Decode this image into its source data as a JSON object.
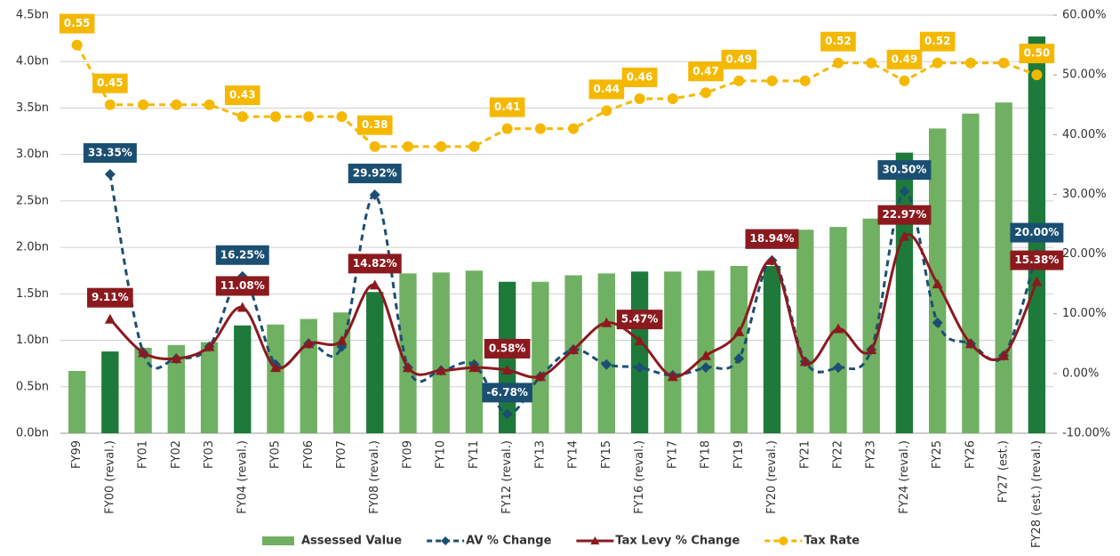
{
  "chart_data": {
    "type": "combo",
    "categories": [
      "FY99",
      "FY00 (reval.)",
      "FY01",
      "FY02",
      "FY03",
      "FY04 (reval.)",
      "FY05",
      "FY06",
      "FY07",
      "FY08 (reval.)",
      "FY09",
      "FY10",
      "FY11",
      "FY12 (reval.)",
      "FY13",
      "FY14",
      "FY15",
      "FY16 (reval.)",
      "FY17",
      "FY18",
      "FY19",
      "FY20 (reval.)",
      "FY21",
      "FY22",
      "FY23",
      "FY24 (reval.)",
      "FY25",
      "FY26",
      "FY27 (est.)",
      "FY28 (est.) (reval.)"
    ],
    "ylim": [
      0,
      4.5
    ],
    "yticks": [
      {
        "value": 0,
        "label": "0.0bn"
      },
      {
        "value": 0.5,
        "label": "0.5bn"
      },
      {
        "value": 1,
        "label": "1.0bn"
      },
      {
        "value": 1.5,
        "label": "1.5bn"
      },
      {
        "value": 2,
        "label": "2.0bn"
      },
      {
        "value": 2.5,
        "label": "2.5bn"
      },
      {
        "value": 3,
        "label": "3.0bn"
      },
      {
        "value": 3.5,
        "label": "3.5bn"
      },
      {
        "value": 4,
        "label": "4.0bn"
      },
      {
        "value": 4.5,
        "label": "4.5bn"
      }
    ],
    "y2lim": [
      -10,
      60
    ],
    "y2ticks": [
      {
        "value": -10,
        "label": "-10.00%"
      },
      {
        "value": 0,
        "label": "0.00%"
      },
      {
        "value": 10,
        "label": "10.00%"
      },
      {
        "value": 20,
        "label": "20.00%"
      },
      {
        "value": 30,
        "label": "30.00%"
      },
      {
        "value": 40,
        "label": "40.00%"
      },
      {
        "value": 50,
        "label": "50.00%"
      },
      {
        "value": 60,
        "label": "60.00%"
      }
    ],
    "y3lim": [
      -0.1,
      0.6
    ],
    "grid": true,
    "legend": "bottom",
    "series": [
      {
        "name": "Assessed Value",
        "type": "bar",
        "color": "#70b062",
        "colors": [
          "#70b062",
          "#1e7a3a",
          "#70b062",
          "#70b062",
          "#70b062",
          "#1e7a3a",
          "#70b062",
          "#70b062",
          "#70b062",
          "#1e7a3a",
          "#70b062",
          "#70b062",
          "#70b062",
          "#1e7a3a",
          "#70b062",
          "#70b062",
          "#70b062",
          "#1e7a3a",
          "#70b062",
          "#70b062",
          "#70b062",
          "#1e7a3a",
          "#70b062",
          "#70b062",
          "#70b062",
          "#1e7a3a",
          "#70b062",
          "#70b062",
          "#70b062",
          "#1e7a3a"
        ],
        "values": [
          0.67,
          0.88,
          0.92,
          0.95,
          0.98,
          1.16,
          1.17,
          1.23,
          1.3,
          1.52,
          1.72,
          1.73,
          1.75,
          1.63,
          1.63,
          1.7,
          1.72,
          1.74,
          1.74,
          1.75,
          1.8,
          1.8,
          2.19,
          2.22,
          2.31,
          3.02,
          3.28,
          3.44,
          3.56,
          4.27
        ]
      },
      {
        "name": "AV % Change",
        "type": "line",
        "axis": "y2",
        "color": "#1b4f72",
        "dashed": true,
        "marker": "diamond",
        "values": [
          null,
          33.35,
          3.5,
          2.5,
          4.5,
          16.25,
          1.5,
          5,
          4.5,
          29.92,
          1,
          0.5,
          1.5,
          -6.78,
          -0.5,
          4,
          1.5,
          1,
          -0.3,
          1,
          2.5,
          18.94,
          2,
          1,
          4,
          30.5,
          8.5,
          5,
          3,
          20
        ],
        "value_labels": [
          null,
          "33.35%",
          null,
          null,
          null,
          "16.25%",
          null,
          null,
          null,
          "29.92%",
          null,
          null,
          null,
          "-6.78%",
          null,
          null,
          null,
          null,
          null,
          null,
          null,
          "18.94%",
          null,
          null,
          null,
          "30.50%",
          null,
          null,
          null,
          "20.00%"
        ]
      },
      {
        "name": "Tax Levy % Change",
        "type": "line",
        "axis": "y2",
        "color": "#8b1a1f",
        "dashed": false,
        "marker": "triangle",
        "values": [
          null,
          9.11,
          3.5,
          2.5,
          4.5,
          11.08,
          1,
          5,
          5.5,
          14.82,
          1,
          0.5,
          1,
          0.58,
          -0.5,
          4,
          8.5,
          5.47,
          -0.5,
          3,
          7,
          18.94,
          2,
          7.5,
          4,
          22.97,
          15,
          5,
          3,
          15.38
        ],
        "value_labels": [
          null,
          "9.11%",
          null,
          null,
          null,
          "11.08%",
          null,
          null,
          null,
          "14.82%",
          null,
          null,
          null,
          "0.58%",
          null,
          null,
          null,
          "5.47%",
          null,
          null,
          null,
          "18.94%",
          null,
          null,
          null,
          "22.97%",
          null,
          null,
          null,
          "15.38%"
        ]
      },
      {
        "name": "Tax Rate",
        "type": "line",
        "axis": "y3",
        "color": "#f5b800",
        "dashed": true,
        "marker": "circle",
        "straight": true,
        "values": [
          0.55,
          0.45,
          0.45,
          0.45,
          0.45,
          0.43,
          0.43,
          0.43,
          0.43,
          0.38,
          0.38,
          0.38,
          0.38,
          0.41,
          0.41,
          0.41,
          0.44,
          0.46,
          0.46,
          0.47,
          0.49,
          0.49,
          0.49,
          0.52,
          0.52,
          0.49,
          0.52,
          0.52,
          0.52,
          0.5
        ],
        "value_labels": [
          "0.55",
          "0.45",
          null,
          null,
          null,
          "0.43",
          null,
          null,
          null,
          "0.38",
          null,
          null,
          null,
          "0.41",
          null,
          null,
          "0.44",
          "0.46",
          null,
          "0.47",
          "0.49",
          null,
          null,
          "0.52",
          null,
          "0.49",
          "0.52",
          null,
          null,
          "0.50"
        ]
      }
    ]
  }
}
